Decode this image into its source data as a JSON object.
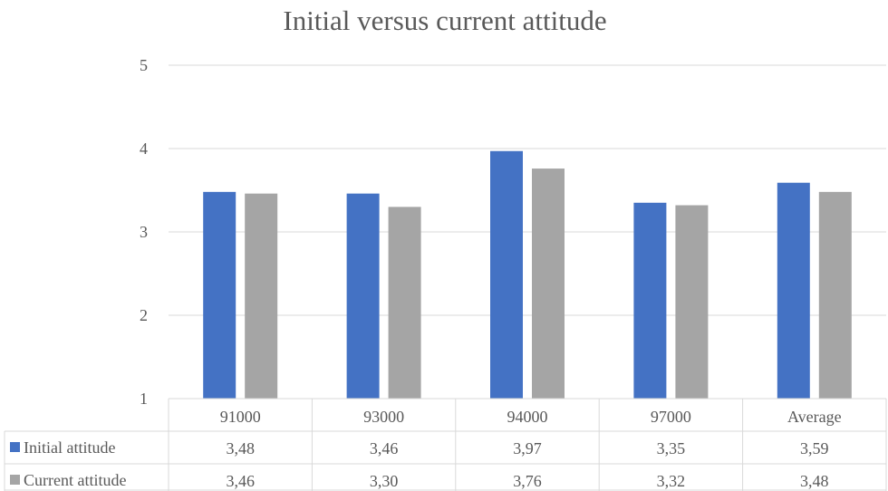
{
  "chart_data": {
    "type": "bar",
    "title": "Initial versus current attitude",
    "categories": [
      "91000",
      "93000",
      "94000",
      "97000",
      "Average"
    ],
    "series": [
      {
        "name": "Initial attitude",
        "values": [
          3.48,
          3.46,
          3.97,
          3.35,
          3.59
        ],
        "labels": [
          "3,48",
          "3,46",
          "3,97",
          "3,35",
          "3,59"
        ],
        "color": "#4472C4"
      },
      {
        "name": "Current attitude",
        "values": [
          3.46,
          3.3,
          3.76,
          3.32,
          3.48
        ],
        "labels": [
          "3,46",
          "3,30",
          "3,76",
          "3,32",
          "3,48"
        ],
        "color": "#A5A5A5"
      }
    ],
    "y_ticks": [
      "1",
      "2",
      "3",
      "4",
      "5"
    ],
    "ylim": [
      1,
      5
    ],
    "grid": true,
    "legend": "data-table"
  }
}
